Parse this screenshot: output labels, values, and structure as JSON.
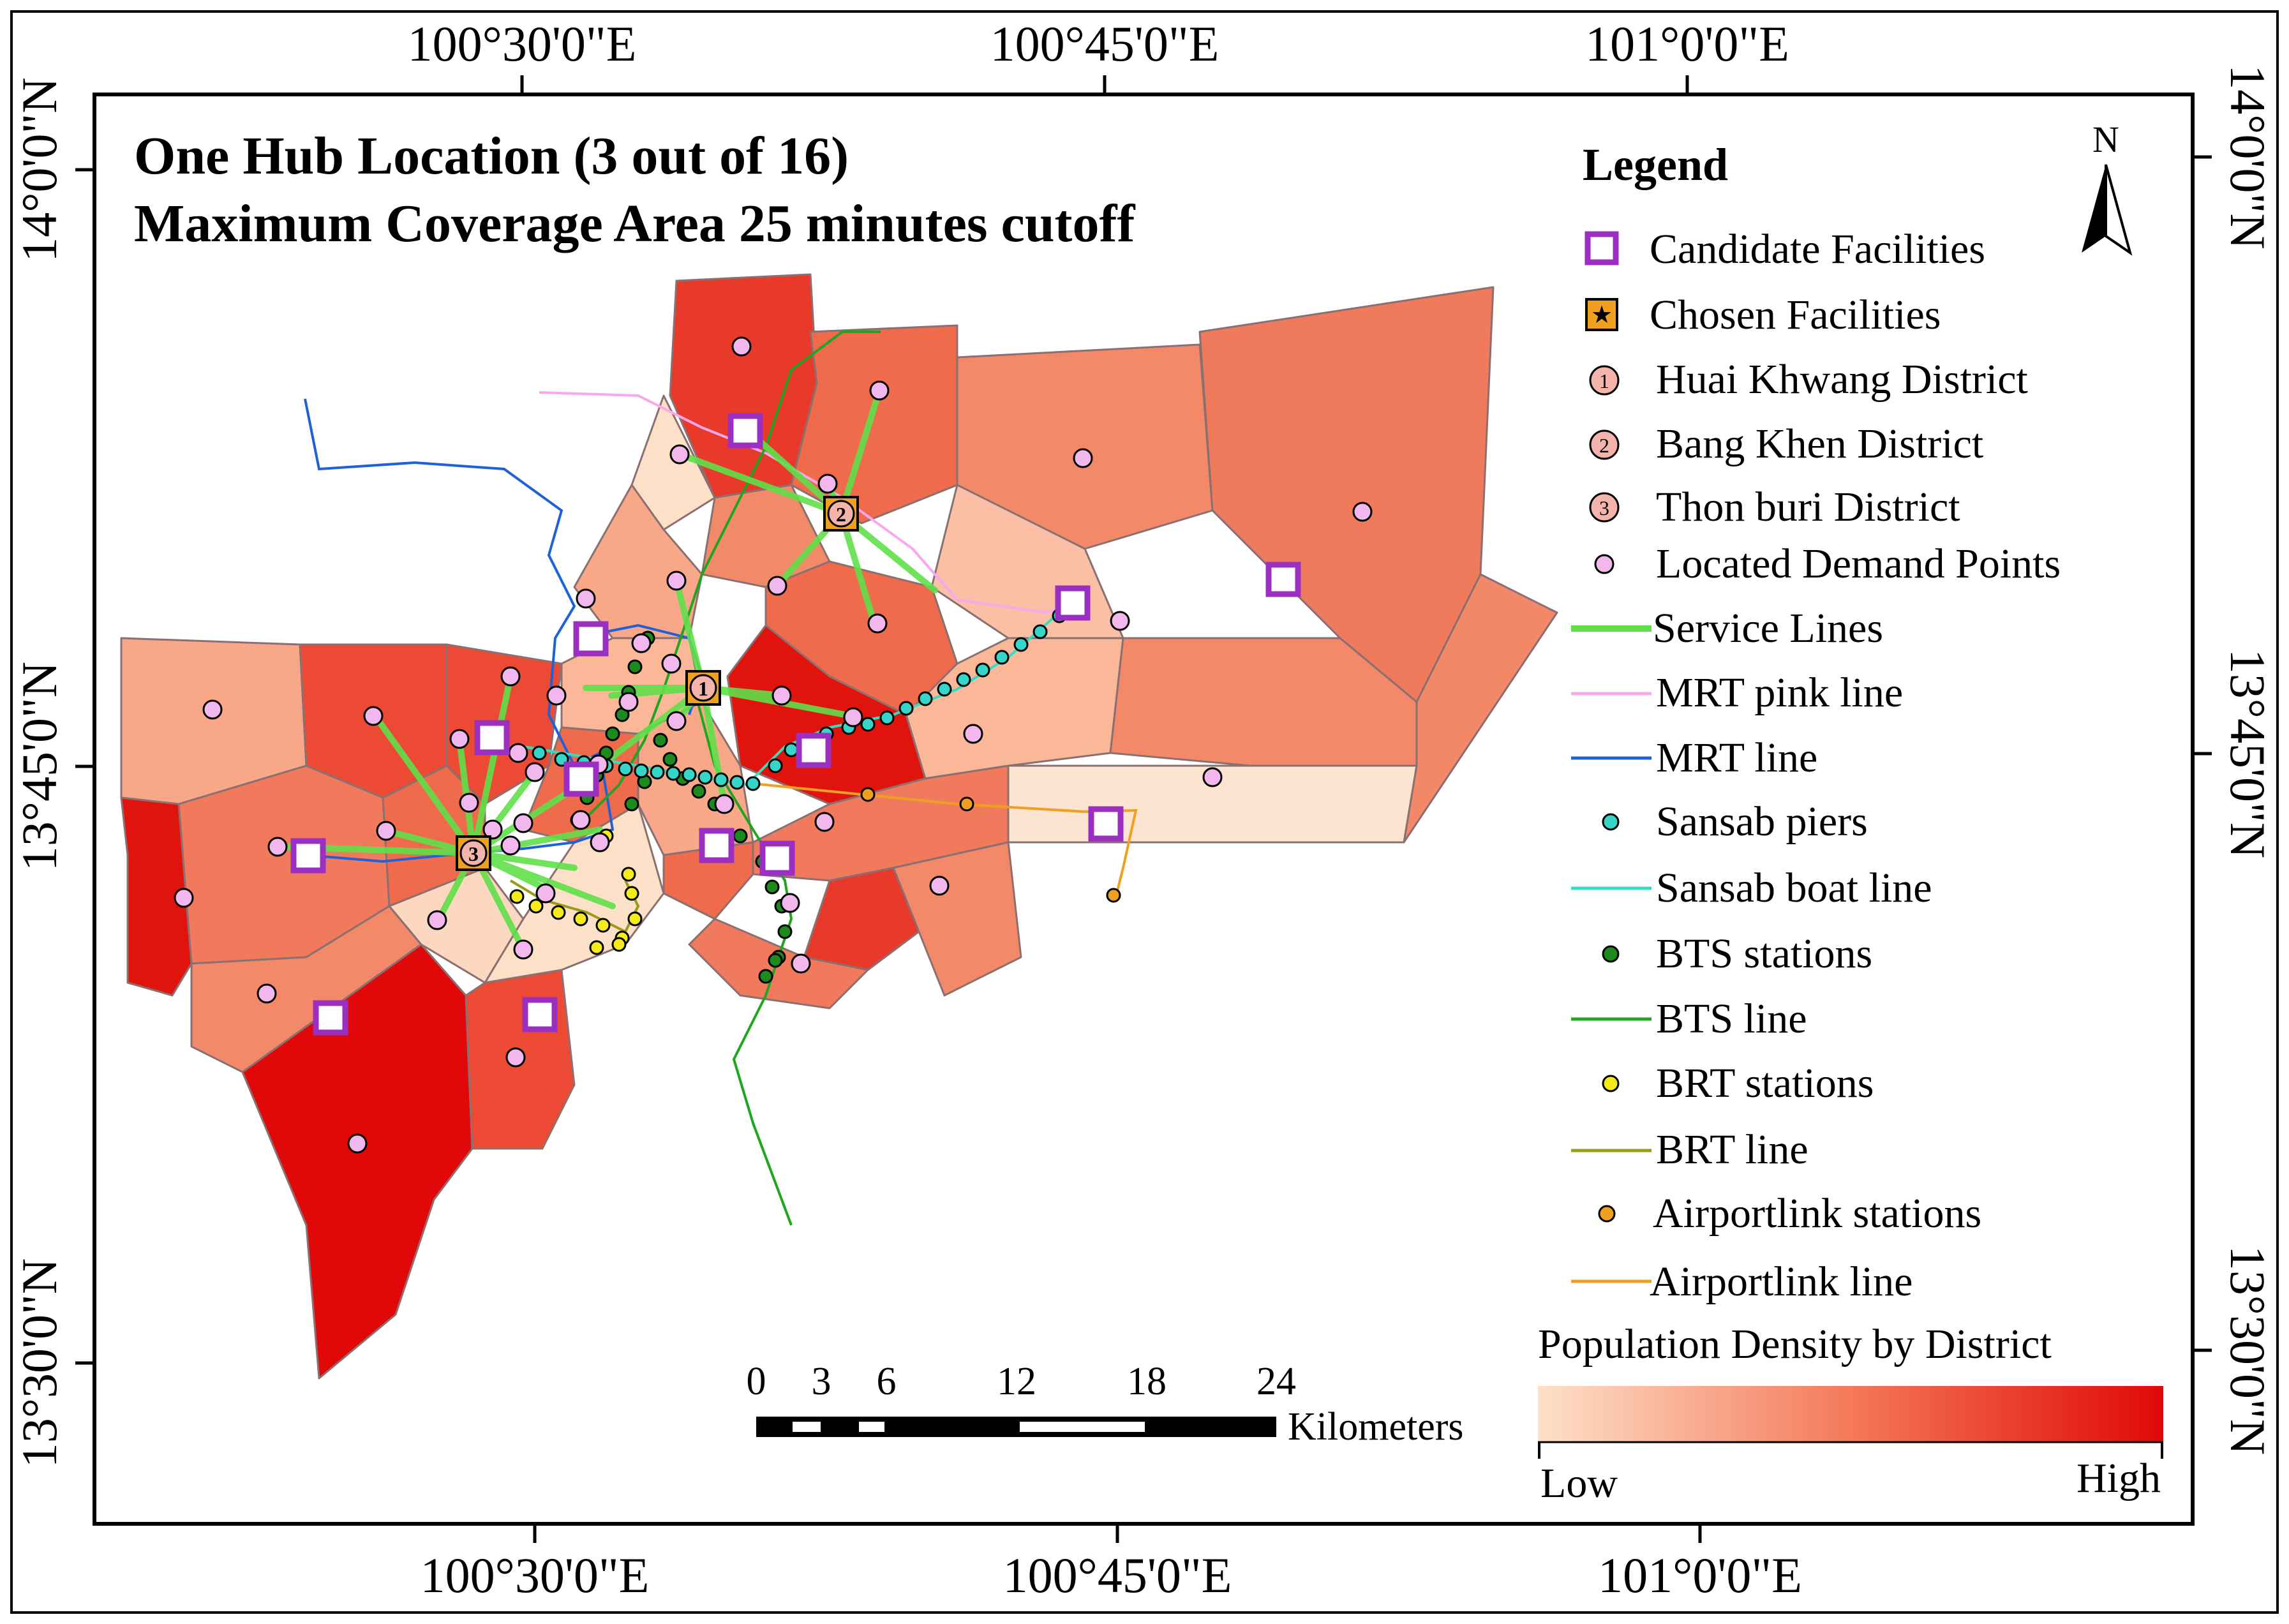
{
  "title": {
    "line1": "One Hub Location (3 out of 16)",
    "line2": "Maximum Coverage Area 25 minutes cutoff"
  },
  "graticule": {
    "top": [
      "100°30'0\"E",
      "100°45'0\"E",
      "101°0'0\"E"
    ],
    "bottom": [
      "100°30'0\"E",
      "100°45'0\"E",
      "101°0'0\"E"
    ],
    "left": [
      "14°0'0\"N",
      "13°45'0\"N",
      "13°30'0\"N"
    ],
    "right": [
      "14°0'0\"N",
      "13°45'0\"N",
      "13°30'0\"N"
    ]
  },
  "north_arrow": {
    "label": "N"
  },
  "legend": {
    "title": "Legend",
    "items": [
      {
        "label": "Candidate Facilities"
      },
      {
        "label": "Chosen Facilities"
      },
      {
        "label": "Huai Khwang District",
        "marker": "1"
      },
      {
        "label": "Bang Khen District",
        "marker": "2"
      },
      {
        "label": "Thon buri District",
        "marker": "3"
      },
      {
        "label": "Located Demand Points"
      },
      {
        "label": "Service Lines"
      },
      {
        "label": "MRT pink line"
      },
      {
        "label": "MRT line"
      },
      {
        "label": "Sansab piers"
      },
      {
        "label": "Sansab boat line"
      },
      {
        "label": "BTS stations"
      },
      {
        "label": "BTS line"
      },
      {
        "label": "BRT stations"
      },
      {
        "label": "BRT line"
      },
      {
        "label": "Airportlink stations"
      },
      {
        "label": "Airportlink line"
      }
    ],
    "ramp": {
      "title": "Population Density by District",
      "low": "Low",
      "high": "High"
    }
  },
  "scale_bar": {
    "ticks": [
      "0",
      "3",
      "6",
      "12",
      "18",
      "24"
    ],
    "unit": "Kilometers"
  },
  "colors": {
    "candidate": "#9b2fc1",
    "chosen": "#f0a020",
    "district_marker": "#f4b4ac",
    "demand": "#f2b8ee",
    "service": "#5fe04a",
    "mrt_pink": "#f9a8ec",
    "mrt": "#1f62d8",
    "sansab_piers": "#35d6c8",
    "sansab_line": "#2fe0c0",
    "bts_stations": "#1c8a1c",
    "bts_line": "#1fa51f",
    "brt_stations": "#f5ea1a",
    "brt_line": "#9a9a1a",
    "airport_stations": "#f0a020",
    "airport_line": "#f0a020",
    "density_low": "#fde0c8",
    "density_high": "#e00808"
  }
}
